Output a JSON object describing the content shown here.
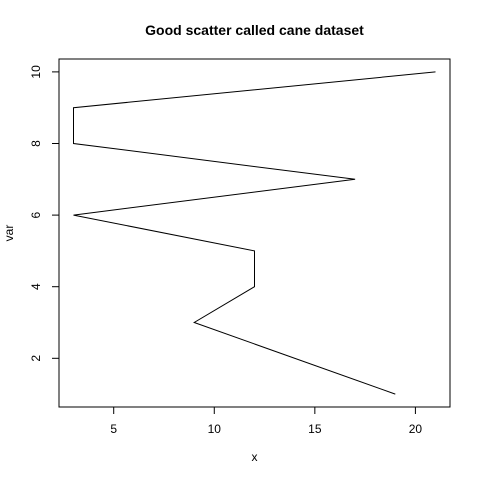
{
  "chart_data": {
    "type": "line",
    "title": "Good scatter called cane dataset",
    "xlabel": "x",
    "ylabel": "var",
    "x": [
      19,
      9,
      12,
      12,
      3,
      17,
      3,
      3,
      21
    ],
    "y": [
      1,
      3,
      4,
      5,
      6,
      7,
      8,
      9,
      10
    ],
    "xlim": [
      2.28,
      21.72
    ],
    "ylim": [
      0.64,
      10.36
    ],
    "xticks": [
      5,
      10,
      15,
      20
    ],
    "yticks": [
      2,
      4,
      6,
      8,
      10
    ],
    "grid": false,
    "line_color": "#000000"
  }
}
